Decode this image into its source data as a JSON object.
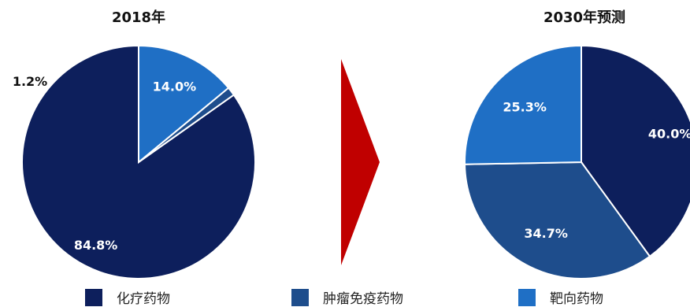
{
  "chart_data": [
    {
      "type": "pie",
      "title": "2018年",
      "slices": [
        {
          "name": "化疗药物",
          "value": 84.8,
          "label": "84.8%",
          "color": "#0d1f5c"
        },
        {
          "name": "肿瘤免疫药物",
          "value": 1.2,
          "label": "1.2%",
          "color": "#1e4d8c"
        },
        {
          "name": "靶向药物",
          "value": 14.0,
          "label": "14.0%",
          "color": "#1f6fc5"
        }
      ]
    },
    {
      "type": "pie",
      "title": "2030年预测",
      "slices": [
        {
          "name": "化疗药物",
          "value": 40.0,
          "label": "40.0%",
          "color": "#0d1f5c"
        },
        {
          "name": "肿瘤免疫药物",
          "value": 34.7,
          "label": "34.7%",
          "color": "#1e4d8c"
        },
        {
          "name": "靶向药物",
          "value": 25.3,
          "label": "25.3%",
          "color": "#1f6fc5"
        }
      ]
    }
  ],
  "arrow_color": "#c00000",
  "legend": [
    {
      "label": "化疗药物",
      "color": "#0d1f5c"
    },
    {
      "label": "肿瘤免疫药物",
      "color": "#1e4d8c"
    },
    {
      "label": "靶向药物",
      "color": "#1f6fc5"
    }
  ]
}
